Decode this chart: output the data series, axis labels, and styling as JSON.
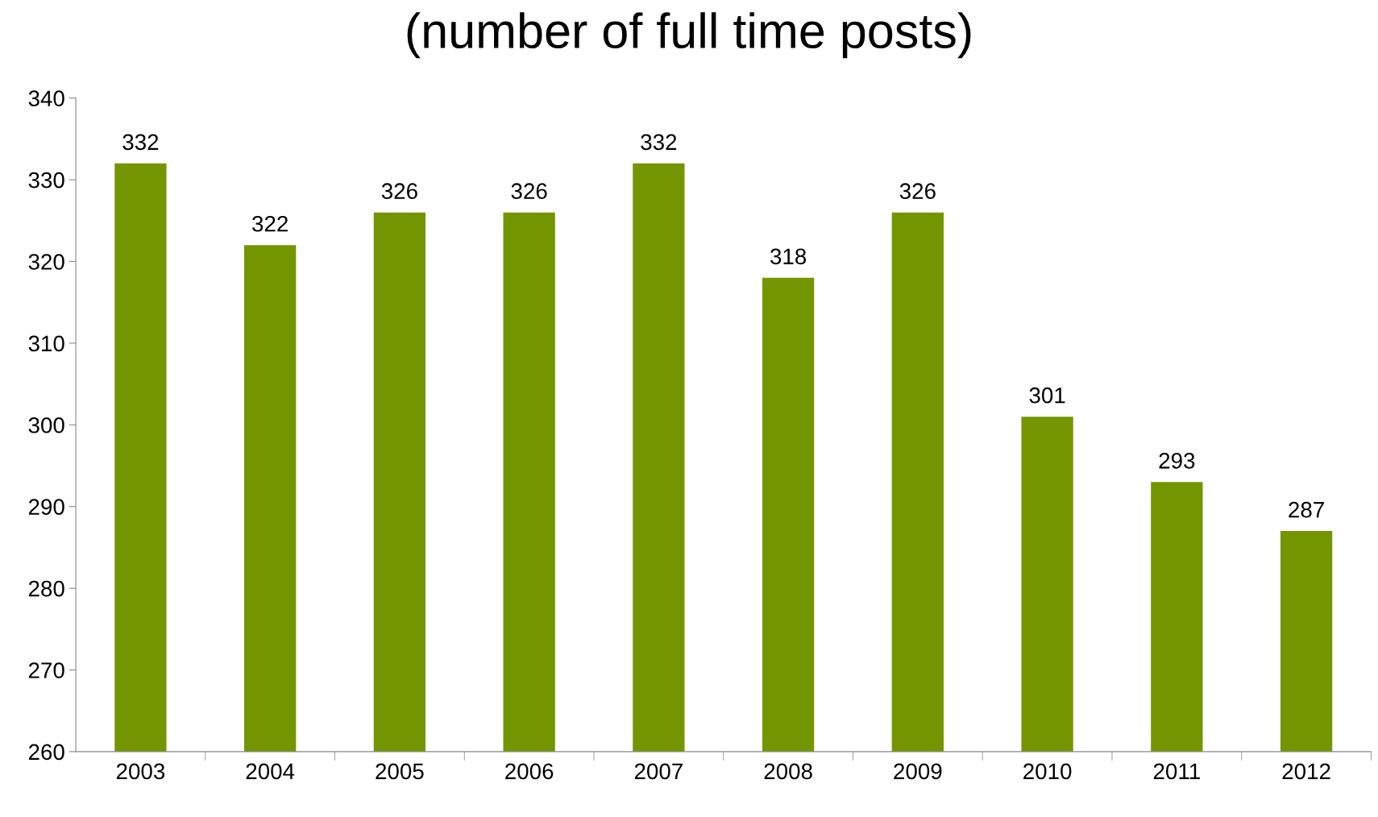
{
  "chart_data": {
    "type": "bar",
    "title": "(number of full time posts)",
    "categories": [
      "2003",
      "2004",
      "2005",
      "2006",
      "2007",
      "2008",
      "2009",
      "2010",
      "2011",
      "2012"
    ],
    "values": [
      332,
      322,
      326,
      326,
      332,
      318,
      326,
      301,
      293,
      287
    ],
    "color": "#739600",
    "ylim": [
      260,
      340
    ],
    "yticks": [
      260,
      270,
      280,
      290,
      300,
      310,
      320,
      330,
      340
    ],
    "data_labels": true,
    "grid": false,
    "legend": false
  }
}
